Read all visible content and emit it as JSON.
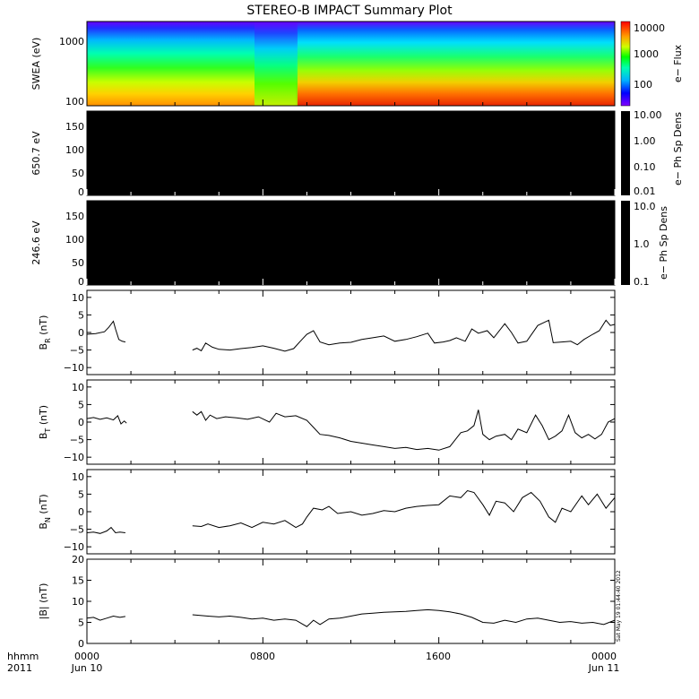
{
  "title": "STEREO-B IMPACT Summary Plot",
  "stamp": "Sat May 19 01:44:40 2012",
  "time_axis": {
    "row1": [
      "0000",
      "0800",
      "1600",
      "0000"
    ],
    "row2": [
      "Jun 10",
      "",
      "",
      "Jun 11"
    ],
    "format_label": "hhmm",
    "year_label": "2011"
  },
  "chart_data": [
    {
      "type": "heatmap",
      "ylabel": "SWEA (eV)",
      "y_scale": "log",
      "y_ticks": [
        "1000",
        "100"
      ],
      "colorbar_label": "e− Flux",
      "colorbar_ticks": [
        "10000",
        "1000",
        "100"
      ],
      "colorbar_scale": "log",
      "colorbar_range": [
        30,
        12000
      ],
      "colormap": "rainbow",
      "energy_range_eV": [
        90,
        2000
      ],
      "x_range_hours": [
        0,
        24
      ]
    },
    {
      "type": "heatmap",
      "ylabel": "650.7 eV",
      "y_range": [
        0,
        180
      ],
      "y_ticks": [
        "150",
        "100",
        "50",
        "0"
      ],
      "colorbar_label": "e− Ph Sp Dens",
      "colorbar_ticks": [
        "10.00",
        "1.00",
        "0.10",
        "0.01"
      ],
      "colorbar_scale": "log",
      "fill_color": "#000000"
    },
    {
      "type": "heatmap",
      "ylabel": "246.6 eV",
      "y_range": [
        0,
        180
      ],
      "y_ticks": [
        "150",
        "100",
        "50",
        "0"
      ],
      "colorbar_label": "e− Ph Sp Dens",
      "colorbar_ticks": [
        "10.0",
        "1.0",
        "0.1"
      ],
      "colorbar_scale": "log",
      "fill_color": "#000000"
    },
    {
      "type": "line",
      "ylabel": "B_R (nT)",
      "ylim": [
        -12,
        12
      ],
      "y_ticks": [
        "10",
        "5",
        "0",
        "−5",
        "−10"
      ],
      "segments": [
        [
          [
            0.0,
            -0.5
          ],
          [
            0.4,
            -0.3
          ],
          [
            0.8,
            0.2
          ],
          [
            1.0,
            1.5
          ],
          [
            1.2,
            3.2
          ],
          [
            1.3,
            1.0
          ],
          [
            1.45,
            -2.0
          ],
          [
            1.6,
            -2.5
          ],
          [
            1.75,
            -2.7
          ]
        ],
        [
          [
            4.8,
            -5.0
          ],
          [
            5.0,
            -4.5
          ],
          [
            5.2,
            -5.2
          ],
          [
            5.4,
            -3.0
          ],
          [
            5.7,
            -4.2
          ],
          [
            6.0,
            -4.8
          ],
          [
            6.5,
            -5.0
          ],
          [
            7.0,
            -4.6
          ],
          [
            7.5,
            -4.3
          ],
          [
            8.0,
            -3.8
          ],
          [
            8.5,
            -4.5
          ],
          [
            9.0,
            -5.3
          ],
          [
            9.4,
            -4.6
          ],
          [
            9.7,
            -2.5
          ],
          [
            10.0,
            -0.5
          ],
          [
            10.3,
            0.5
          ],
          [
            10.6,
            -2.7
          ],
          [
            11.0,
            -3.5
          ],
          [
            11.5,
            -3.0
          ],
          [
            12.0,
            -2.8
          ],
          [
            12.5,
            -2.0
          ],
          [
            13.0,
            -1.5
          ],
          [
            13.5,
            -1.0
          ],
          [
            14.0,
            -2.5
          ],
          [
            14.5,
            -2.0
          ],
          [
            15.0,
            -1.2
          ],
          [
            15.5,
            -0.2
          ],
          [
            15.8,
            -3.0
          ],
          [
            16.2,
            -2.7
          ],
          [
            16.5,
            -2.3
          ],
          [
            16.8,
            -1.5
          ],
          [
            17.2,
            -2.5
          ],
          [
            17.5,
            1.0
          ],
          [
            17.8,
            -0.2
          ],
          [
            18.2,
            0.5
          ],
          [
            18.5,
            -1.5
          ],
          [
            19.0,
            2.5
          ],
          [
            19.3,
            0.0
          ],
          [
            19.6,
            -3.0
          ],
          [
            20.0,
            -2.5
          ],
          [
            20.5,
            2.0
          ],
          [
            21.0,
            3.5
          ],
          [
            21.2,
            -2.9
          ],
          [
            21.6,
            -2.7
          ],
          [
            22.0,
            -2.5
          ],
          [
            22.3,
            -3.5
          ],
          [
            22.6,
            -2.0
          ],
          [
            23.0,
            -0.5
          ],
          [
            23.3,
            0.5
          ],
          [
            23.6,
            3.5
          ],
          [
            23.8,
            2.0
          ],
          [
            24.0,
            2.3
          ]
        ]
      ]
    },
    {
      "type": "line",
      "ylabel": "B_T (nT)",
      "ylim": [
        -12,
        12
      ],
      "y_ticks": [
        "10",
        "5",
        "0",
        "−5",
        "−10"
      ],
      "segments": [
        [
          [
            0.0,
            1.0
          ],
          [
            0.3,
            1.3
          ],
          [
            0.6,
            0.8
          ],
          [
            0.9,
            1.2
          ],
          [
            1.2,
            0.6
          ],
          [
            1.4,
            1.8
          ],
          [
            1.55,
            -0.5
          ],
          [
            1.7,
            0.3
          ],
          [
            1.8,
            -0.3
          ]
        ],
        [
          [
            4.8,
            3.0
          ],
          [
            5.0,
            2.0
          ],
          [
            5.2,
            3.0
          ],
          [
            5.4,
            0.5
          ],
          [
            5.6,
            2.0
          ],
          [
            5.9,
            1.0
          ],
          [
            6.3,
            1.5
          ],
          [
            6.8,
            1.2
          ],
          [
            7.3,
            0.8
          ],
          [
            7.8,
            1.5
          ],
          [
            8.3,
            0.0
          ],
          [
            8.6,
            2.5
          ],
          [
            9.0,
            1.5
          ],
          [
            9.5,
            1.8
          ],
          [
            10.0,
            0.5
          ],
          [
            10.3,
            -1.5
          ],
          [
            10.6,
            -3.5
          ],
          [
            11.0,
            -3.8
          ],
          [
            11.5,
            -4.5
          ],
          [
            12.0,
            -5.5
          ],
          [
            12.5,
            -6.0
          ],
          [
            13.0,
            -6.5
          ],
          [
            13.5,
            -7.0
          ],
          [
            14.0,
            -7.5
          ],
          [
            14.5,
            -7.2
          ],
          [
            15.0,
            -7.8
          ],
          [
            15.5,
            -7.5
          ],
          [
            16.0,
            -8.0
          ],
          [
            16.5,
            -7.0
          ],
          [
            17.0,
            -3.0
          ],
          [
            17.3,
            -2.5
          ],
          [
            17.6,
            -1.0
          ],
          [
            17.8,
            3.5
          ],
          [
            18.0,
            -3.5
          ],
          [
            18.3,
            -5.0
          ],
          [
            18.6,
            -4.0
          ],
          [
            19.0,
            -3.5
          ],
          [
            19.3,
            -5.0
          ],
          [
            19.6,
            -2.0
          ],
          [
            20.0,
            -3.0
          ],
          [
            20.4,
            2.0
          ],
          [
            20.7,
            -1.0
          ],
          [
            21.0,
            -5.0
          ],
          [
            21.3,
            -4.0
          ],
          [
            21.6,
            -2.5
          ],
          [
            21.9,
            2.0
          ],
          [
            22.2,
            -3.0
          ],
          [
            22.5,
            -4.5
          ],
          [
            22.8,
            -3.5
          ],
          [
            23.1,
            -4.8
          ],
          [
            23.4,
            -3.5
          ],
          [
            23.7,
            0.0
          ],
          [
            24.0,
            1.0
          ]
        ]
      ]
    },
    {
      "type": "line",
      "ylabel": "B_N (nT)",
      "ylim": [
        -12,
        12
      ],
      "y_ticks": [
        "10",
        "5",
        "0",
        "−5",
        "−10"
      ],
      "segments": [
        [
          [
            0.0,
            -6.0
          ],
          [
            0.3,
            -5.8
          ],
          [
            0.6,
            -6.2
          ],
          [
            0.9,
            -5.5
          ],
          [
            1.1,
            -4.5
          ],
          [
            1.3,
            -6.0
          ],
          [
            1.5,
            -5.8
          ],
          [
            1.75,
            -6.0
          ]
        ],
        [
          [
            4.8,
            -4.0
          ],
          [
            5.2,
            -4.2
          ],
          [
            5.5,
            -3.5
          ],
          [
            6.0,
            -4.5
          ],
          [
            6.5,
            -4.0
          ],
          [
            7.0,
            -3.2
          ],
          [
            7.5,
            -4.5
          ],
          [
            8.0,
            -3.0
          ],
          [
            8.5,
            -3.5
          ],
          [
            9.0,
            -2.5
          ],
          [
            9.5,
            -4.5
          ],
          [
            9.8,
            -3.5
          ],
          [
            10.0,
            -1.5
          ],
          [
            10.3,
            1.0
          ],
          [
            10.7,
            0.5
          ],
          [
            11.0,
            1.5
          ],
          [
            11.4,
            -0.5
          ],
          [
            12.0,
            0.0
          ],
          [
            12.5,
            -1.0
          ],
          [
            13.0,
            -0.5
          ],
          [
            13.5,
            0.3
          ],
          [
            14.0,
            0.0
          ],
          [
            14.5,
            1.0
          ],
          [
            15.0,
            1.5
          ],
          [
            15.5,
            1.8
          ],
          [
            16.0,
            2.0
          ],
          [
            16.5,
            4.5
          ],
          [
            17.0,
            4.0
          ],
          [
            17.3,
            6.0
          ],
          [
            17.6,
            5.5
          ],
          [
            18.0,
            2.0
          ],
          [
            18.3,
            -1.0
          ],
          [
            18.6,
            3.0
          ],
          [
            19.0,
            2.5
          ],
          [
            19.4,
            0.0
          ],
          [
            19.8,
            4.0
          ],
          [
            20.2,
            5.5
          ],
          [
            20.6,
            3.0
          ],
          [
            21.0,
            -1.5
          ],
          [
            21.3,
            -3.0
          ],
          [
            21.6,
            1.0
          ],
          [
            22.0,
            0.0
          ],
          [
            22.5,
            4.5
          ],
          [
            22.8,
            2.0
          ],
          [
            23.2,
            5.0
          ],
          [
            23.6,
            1.0
          ],
          [
            24.0,
            4.0
          ]
        ]
      ]
    },
    {
      "type": "line",
      "ylabel": "|B| (nT)",
      "ylim": [
        0,
        20
      ],
      "y_ticks": [
        "20",
        "15",
        "10",
        "5",
        "0"
      ],
      "segments": [
        [
          [
            0.0,
            6.0
          ],
          [
            0.3,
            6.2
          ],
          [
            0.6,
            5.5
          ],
          [
            0.9,
            6.0
          ],
          [
            1.2,
            6.5
          ],
          [
            1.5,
            6.2
          ],
          [
            1.75,
            6.4
          ]
        ],
        [
          [
            4.8,
            6.8
          ],
          [
            5.5,
            6.5
          ],
          [
            6.0,
            6.3
          ],
          [
            6.5,
            6.5
          ],
          [
            7.0,
            6.2
          ],
          [
            7.5,
            5.8
          ],
          [
            8.0,
            6.0
          ],
          [
            8.5,
            5.5
          ],
          [
            9.0,
            5.8
          ],
          [
            9.5,
            5.5
          ],
          [
            10.0,
            4.0
          ],
          [
            10.3,
            5.5
          ],
          [
            10.6,
            4.5
          ],
          [
            11.0,
            5.8
          ],
          [
            11.5,
            6.0
          ],
          [
            12.0,
            6.5
          ],
          [
            12.5,
            7.0
          ],
          [
            13.0,
            7.2
          ],
          [
            13.5,
            7.4
          ],
          [
            14.0,
            7.5
          ],
          [
            14.5,
            7.6
          ],
          [
            15.0,
            7.8
          ],
          [
            15.5,
            8.0
          ],
          [
            16.0,
            7.8
          ],
          [
            16.5,
            7.5
          ],
          [
            17.0,
            7.0
          ],
          [
            17.5,
            6.2
          ],
          [
            18.0,
            5.0
          ],
          [
            18.5,
            4.8
          ],
          [
            19.0,
            5.5
          ],
          [
            19.5,
            5.0
          ],
          [
            20.0,
            5.8
          ],
          [
            20.5,
            6.0
          ],
          [
            21.0,
            5.5
          ],
          [
            21.5,
            5.0
          ],
          [
            22.0,
            5.2
          ],
          [
            22.5,
            4.8
          ],
          [
            23.0,
            5.0
          ],
          [
            23.5,
            4.5
          ],
          [
            24.0,
            5.5
          ]
        ]
      ]
    }
  ]
}
